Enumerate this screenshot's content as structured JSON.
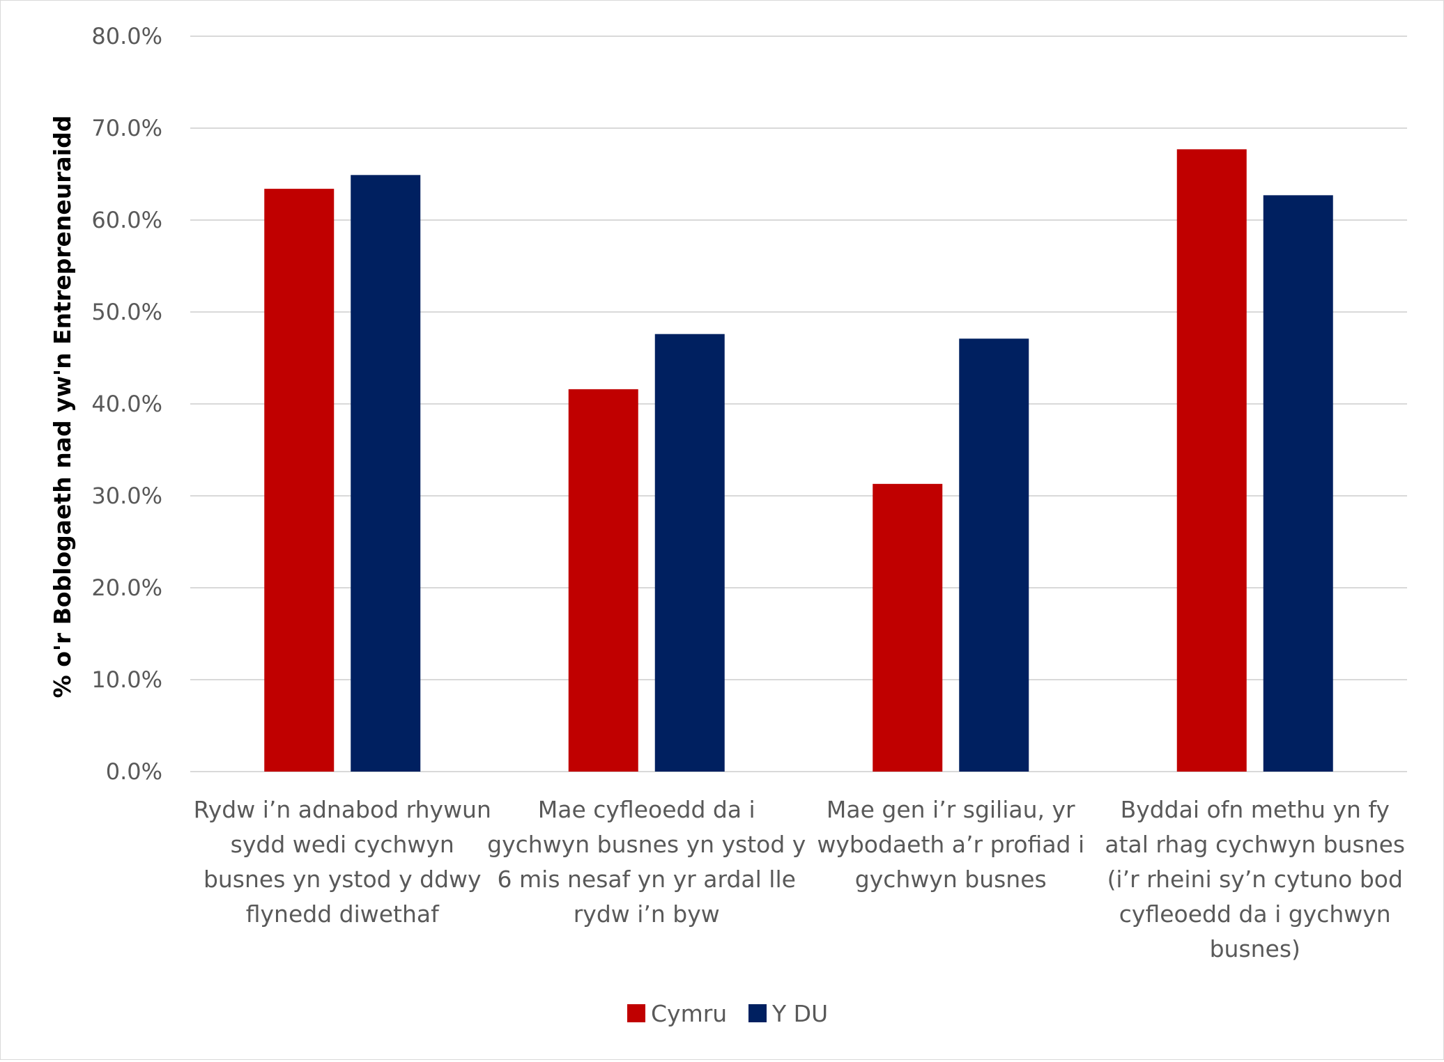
{
  "chart_data": {
    "type": "bar",
    "title": "",
    "ylabel": "% o'r Boblogaeth nad yw'n Entrepreneuraidd",
    "xlabel": "",
    "ylim": [
      0,
      80
    ],
    "y_ticks": [
      "0.0%",
      "10.0%",
      "20.0%",
      "30.0%",
      "40.0%",
      "50.0%",
      "60.0%",
      "70.0%",
      "80.0%"
    ],
    "grid": true,
    "legend_position": "bottom",
    "categories": [
      "Rydw i’n adnabod rhywun sydd wedi cychwyn busnes yn ystod y ddwy flynedd diwethaf",
      "Mae cyfleoedd da i gychwyn busnes yn ystod y 6 mis nesaf yn yr ardal lle rydw i’n byw",
      "Mae gen i’r sgiliau, yr wybodaeth a’r profiad i gychwyn busnes",
      "Byddai ofn methu yn fy atal rhag cychwyn busnes (i’r rheini sy’n cytuno bod cyfleoedd da i gychwyn busnes)"
    ],
    "category_lines": [
      [
        "Rydw i’n adnabod rhywun",
        "sydd wedi cychwyn",
        "busnes yn ystod y ddwy",
        "flynedd diwethaf"
      ],
      [
        "Mae cyfleoedd da i",
        "gychwyn busnes yn ystod y",
        "6 mis nesaf yn yr ardal lle",
        "rydw i’n byw"
      ],
      [
        "Mae gen i’r sgiliau, yr",
        "wybodaeth a’r profiad i",
        "gychwyn busnes"
      ],
      [
        "Byddai ofn methu yn fy",
        "atal rhag cychwyn busnes",
        "(i’r rheini sy’n cytuno bod",
        "cyfleoedd da i gychwyn",
        "busnes)"
      ]
    ],
    "series": [
      {
        "name": "Cymru",
        "color": "#c00000",
        "values": [
          63.4,
          41.6,
          31.3,
          67.7
        ]
      },
      {
        "name": "Y DU",
        "color": "#002060",
        "values": [
          64.9,
          47.6,
          47.1,
          62.7
        ]
      }
    ]
  }
}
